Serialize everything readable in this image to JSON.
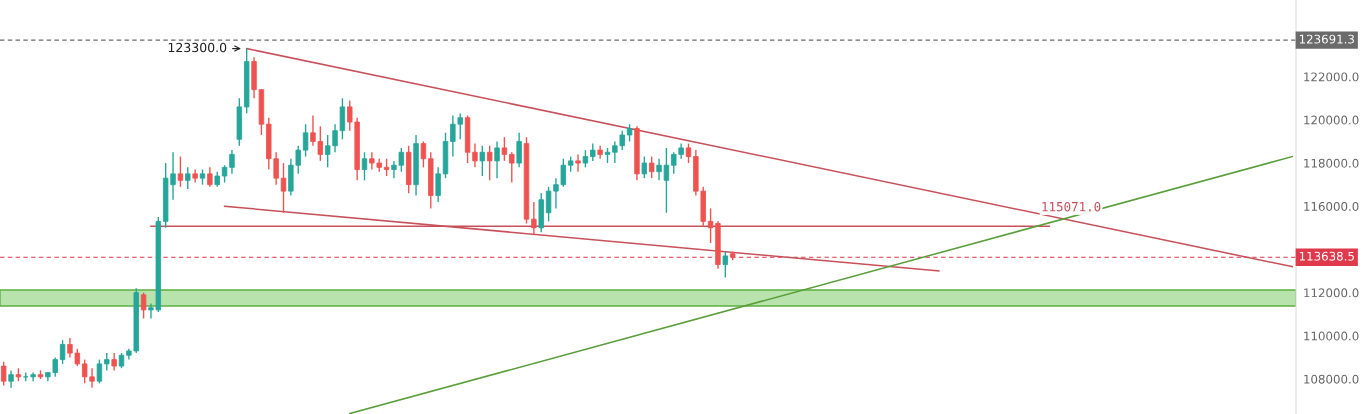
{
  "chart_data": {
    "type": "candlestick",
    "categories": [
      null,
      null,
      null,
      null,
      null,
      null,
      null,
      null,
      null,
      null,
      null,
      null,
      null,
      null,
      null,
      null,
      null,
      null,
      null,
      null,
      null,
      null,
      null,
      null,
      null,
      null,
      null,
      null,
      null,
      null,
      null,
      null,
      null,
      null,
      null,
      null,
      null,
      null,
      null,
      null,
      null,
      null,
      null,
      null,
      null,
      null,
      null,
      null,
      null,
      null,
      null,
      null,
      null,
      null,
      null,
      null,
      null,
      null,
      null,
      null,
      null,
      null,
      null,
      null,
      null,
      null,
      null,
      null,
      null,
      null,
      null,
      null,
      null,
      null,
      null,
      null,
      null,
      null,
      null,
      null,
      null,
      null,
      null,
      null,
      null,
      null,
      null,
      null,
      null,
      null,
      null,
      null,
      null,
      null,
      null,
      null,
      null,
      null,
      null,
      null,
      null,
      null,
      null,
      null,
      null,
      null,
      null,
      null,
      null,
      null,
      null,
      null,
      null,
      null,
      null,
      null,
      null,
      null,
      null,
      null,
      null,
      null,
      null,
      null,
      null,
      null,
      null,
      null,
      null,
      null,
      null,
      null,
      null,
      null,
      null,
      null,
      null,
      null,
      null,
      null,
      null,
      null,
      null,
      null,
      null,
      null,
      null,
      null,
      null,
      null,
      null,
      null,
      null,
      null,
      null,
      null,
      null,
      null,
      null,
      null,
      null,
      null,
      null,
      null,
      null,
      null,
      null,
      null,
      null,
      null,
      null,
      null,
      null,
      null,
      null,
      null
    ],
    "ohlc": [
      [
        108600,
        108800,
        107700,
        107900
      ],
      [
        107900,
        108400,
        107600,
        108200
      ],
      [
        108200,
        108500,
        107900,
        108100
      ],
      [
        108100,
        108300,
        107900,
        108100
      ],
      [
        108100,
        108300,
        107900,
        108200
      ],
      [
        108200,
        108400,
        108000,
        108100
      ],
      [
        108100,
        108300,
        107900,
        108300
      ],
      [
        108300,
        109000,
        108100,
        108900
      ],
      [
        108900,
        109800,
        108700,
        109600
      ],
      [
        109600,
        109900,
        109000,
        109200
      ],
      [
        109200,
        109400,
        108600,
        108700
      ],
      [
        108700,
        108900,
        107800,
        108100
      ],
      [
        108100,
        108500,
        107600,
        107900
      ],
      [
        107900,
        108900,
        107800,
        108700
      ],
      [
        108700,
        109200,
        108400,
        108900
      ],
      [
        108900,
        109200,
        108400,
        108600
      ],
      [
        108600,
        109200,
        108500,
        109100
      ],
      [
        109100,
        109400,
        108900,
        109300
      ],
      [
        109300,
        112200,
        109200,
        112000
      ],
      [
        111900,
        112000,
        110800,
        111200
      ],
      [
        111200,
        111500,
        110800,
        111300
      ],
      [
        111200,
        115500,
        111100,
        115300
      ],
      [
        115300,
        118000,
        115000,
        117300
      ],
      [
        117000,
        118500,
        116300,
        117500
      ],
      [
        117500,
        118300,
        116900,
        117200
      ],
      [
        117200,
        117800,
        116800,
        117500
      ],
      [
        117500,
        117700,
        117100,
        117300
      ],
      [
        117300,
        117700,
        117000,
        117500
      ],
      [
        117500,
        117800,
        116900,
        117000
      ],
      [
        117000,
        117600,
        116900,
        117400
      ],
      [
        117400,
        117900,
        117100,
        117800
      ],
      [
        117800,
        118600,
        117500,
        118400
      ],
      [
        119100,
        121000,
        118800,
        120600
      ],
      [
        120600,
        123300,
        120300,
        122700
      ],
      [
        122700,
        122900,
        121000,
        121400
      ],
      [
        121400,
        121400,
        119300,
        119800
      ],
      [
        119800,
        120100,
        117700,
        118200
      ],
      [
        118200,
        118500,
        117000,
        117300
      ],
      [
        117300,
        118000,
        115700,
        116700
      ],
      [
        116700,
        118200,
        116500,
        117900
      ],
      [
        117900,
        118800,
        117500,
        118600
      ],
      [
        118600,
        119800,
        118300,
        119400
      ],
      [
        119400,
        120200,
        118800,
        119000
      ],
      [
        119000,
        119700,
        118100,
        118400
      ],
      [
        118400,
        119300,
        117800,
        118800
      ],
      [
        118800,
        119800,
        118500,
        119500
      ],
      [
        119500,
        121000,
        119100,
        120600
      ],
      [
        120600,
        120900,
        119500,
        119900
      ],
      [
        119900,
        120100,
        117200,
        117700
      ],
      [
        117700,
        118500,
        117200,
        118200
      ],
      [
        118200,
        118500,
        117700,
        118000
      ],
      [
        118000,
        118200,
        117600,
        117800
      ],
      [
        117800,
        118200,
        117400,
        117700
      ],
      [
        117700,
        118100,
        117300,
        117900
      ],
      [
        117900,
        118700,
        117600,
        118500
      ],
      [
        118500,
        118800,
        116600,
        117000
      ],
      [
        117000,
        119300,
        116500,
        118900
      ],
      [
        118900,
        119000,
        117800,
        118200
      ],
      [
        118200,
        118500,
        115900,
        116500
      ],
      [
        116500,
        117800,
        116200,
        117500
      ],
      [
        117500,
        119400,
        117300,
        119000
      ],
      [
        119000,
        120200,
        118300,
        119800
      ],
      [
        119800,
        120300,
        119100,
        120100
      ],
      [
        120100,
        120200,
        118000,
        118500
      ],
      [
        118500,
        118900,
        117800,
        118100
      ],
      [
        118100,
        118800,
        117400,
        118500
      ],
      [
        118500,
        118800,
        117200,
        118100
      ],
      [
        118100,
        119000,
        117300,
        118700
      ],
      [
        118700,
        119200,
        118100,
        118400
      ],
      [
        118400,
        118500,
        117100,
        118000
      ],
      [
        118000,
        119400,
        117800,
        119000
      ],
      [
        118900,
        119200,
        115200,
        115400
      ],
      [
        115400,
        116200,
        114700,
        115000
      ],
      [
        115000,
        116600,
        114800,
        116300
      ],
      [
        115700,
        116900,
        115300,
        116700
      ],
      [
        116700,
        117300,
        115900,
        117000
      ],
      [
        117000,
        118200,
        116900,
        117900
      ],
      [
        117900,
        118300,
        117600,
        118100
      ],
      [
        118100,
        118400,
        117600,
        118000
      ],
      [
        118000,
        118600,
        117800,
        118300
      ],
      [
        118300,
        118900,
        118100,
        118600
      ],
      [
        118600,
        118800,
        118200,
        118400
      ],
      [
        118400,
        118700,
        118000,
        118500
      ],
      [
        118500,
        119000,
        118000,
        118800
      ],
      [
        118800,
        119500,
        118600,
        119300
      ],
      [
        119300,
        119800,
        119000,
        119600
      ],
      [
        119600,
        119700,
        117200,
        117500
      ],
      [
        117500,
        118300,
        117300,
        118000
      ],
      [
        118000,
        118300,
        117300,
        117600
      ],
      [
        117600,
        118200,
        117200,
        117900
      ],
      [
        117200,
        118700,
        115700,
        117900
      ],
      [
        117900,
        118500,
        117500,
        118400
      ],
      [
        118400,
        118900,
        118200,
        118700
      ],
      [
        118700,
        118900,
        118000,
        118300
      ],
      [
        118300,
        118600,
        116500,
        116700
      ],
      [
        116700,
        116900,
        115100,
        115300
      ],
      [
        115300,
        115900,
        114300,
        115000
      ],
      [
        115200,
        115300,
        113100,
        113300
      ],
      [
        113300,
        113900,
        112700,
        113700
      ],
      [
        113800,
        113900,
        113500,
        113638.5
      ],
      null,
      null,
      null,
      null,
      null,
      null,
      null,
      null,
      null,
      null,
      null,
      null,
      null,
      null,
      null,
      null,
      null,
      null,
      null,
      null,
      null,
      null,
      null,
      null,
      null,
      null,
      null,
      null,
      null,
      null,
      null,
      null,
      null,
      null,
      null,
      null,
      null,
      null,
      null,
      null,
      null,
      null,
      null,
      null,
      null,
      null,
      null,
      null,
      null,
      null,
      null,
      null,
      null,
      null,
      null,
      null,
      null,
      null,
      null,
      null,
      null,
      null,
      null,
      null,
      null,
      null,
      null,
      null,
      null,
      null,
      null,
      null,
      null,
      null,
      null,
      null
    ],
    "colors": [
      "#ef5350",
      "#26a69a",
      "#ef5350",
      "#26a69a",
      "#26a69a",
      "#ef5350",
      "#26a69a",
      "#26a69a",
      "#26a69a",
      "#ef5350",
      "#ef5350",
      "#ef5350",
      "#ef5350",
      "#26a69a",
      "#26a69a",
      "#ef5350",
      "#26a69a",
      "#26a69a",
      "#26a69a",
      "#ef5350",
      "#26a69a",
      "#26a69a",
      "#26a69a",
      "#26a69a",
      "#ef5350",
      "#26a69a",
      "#ef5350",
      "#26a69a",
      "#ef5350",
      "#26a69a",
      "#26a69a",
      "#26a69a",
      "#26a69a",
      "#26a69a",
      "#ef5350",
      "#ef5350",
      "#ef5350",
      "#ef5350",
      "#ef5350",
      "#26a69a",
      "#26a69a",
      "#26a69a",
      "#ef5350",
      "#ef5350",
      "#26a69a",
      "#26a69a",
      "#26a69a",
      "#ef5350",
      "#ef5350",
      "#26a69a",
      "#ef5350",
      "#ef5350",
      "#ef5350",
      "#26a69a",
      "#26a69a",
      "#ef5350",
      "#26a69a",
      "#ef5350",
      "#ef5350",
      "#26a69a",
      "#26a69a",
      "#26a69a",
      "#26a69a",
      "#ef5350",
      "#ef5350",
      "#26a69a",
      "#ef5350",
      "#26a69a",
      "#ef5350",
      "#ef5350",
      "#26a69a",
      "#ef5350",
      "#ef5350",
      "#26a69a",
      "#26a69a",
      "#26a69a",
      "#26a69a",
      "#26a69a",
      "#ef5350",
      "#26a69a",
      "#26a69a",
      "#ef5350",
      "#26a69a",
      "#26a69a",
      "#26a69a",
      "#26a69a",
      "#ef5350",
      "#26a69a",
      "#ef5350",
      "#26a69a",
      "#26a69a",
      "#26a69a",
      "#26a69a",
      "#ef5350",
      "#ef5350",
      "#ef5350",
      "#ef5350",
      "#ef5350",
      "#26a69a",
      "#ef5350",
      null,
      null,
      null,
      null,
      null,
      null,
      null,
      null,
      null,
      null,
      null,
      null,
      null,
      null,
      null,
      null,
      null,
      null,
      null,
      null,
      null,
      null,
      null,
      null,
      null,
      null,
      null,
      null,
      null,
      null,
      null,
      null,
      null,
      null,
      null,
      null,
      null,
      null,
      null,
      null,
      null,
      null,
      null,
      null,
      null,
      null,
      null,
      null,
      null,
      null,
      null,
      null,
      null,
      null,
      null,
      null,
      null,
      null,
      null,
      null,
      null,
      null,
      null,
      null,
      null,
      null,
      null,
      null,
      null,
      null,
      null,
      null,
      null,
      null,
      null,
      null
    ],
    "series": [
      {
        "type": "line",
        "color": "#c8505a",
        "values": [
          null,
          null,
          null,
          null,
          null,
          null,
          null,
          null,
          null,
          null,
          null,
          null,
          null,
          null,
          null,
          null,
          null,
          null,
          null,
          null,
          null,
          null,
          null,
          null,
          null,
          null,
          null,
          null,
          null,
          null,
          null,
          null,
          null,
          123300,
          null,
          null,
          null,
          null,
          null,
          null,
          null,
          null,
          null,
          null,
          null,
          null,
          null,
          null,
          null,
          null,
          null,
          null,
          null,
          null,
          null,
          null,
          null,
          null,
          null,
          null,
          null,
          null,
          null,
          null,
          null,
          null,
          null,
          null,
          null,
          null,
          null,
          null,
          null,
          null,
          null,
          null,
          null,
          null,
          null,
          null,
          null,
          null,
          null,
          null,
          null,
          null,
          null,
          null,
          null,
          null,
          null,
          null,
          null,
          null,
          null,
          null,
          null,
          null,
          null,
          null,
          null,
          null,
          null,
          null,
          null,
          null,
          null,
          null,
          null,
          null,
          null,
          null,
          null,
          null,
          null,
          null,
          null,
          null,
          null,
          null,
          null,
          null,
          null,
          null,
          null,
          null,
          null,
          null,
          null,
          null,
          null,
          null,
          null,
          null,
          null,
          null,
          null,
          null,
          null,
          null,
          null,
          null,
          null,
          null,
          null,
          null,
          null,
          null,
          null,
          null,
          null,
          null,
          null,
          null,
          null,
          null,
          null,
          null,
          null,
          null,
          null,
          null,
          null,
          null,
          null,
          null,
          null,
          null,
          null,
          null,
          null,
          null,
          null,
          null,
          null,
          113200
        ]
      },
      {
        "type": "line",
        "color": "#c8505a",
        "values": [
          null,
          null,
          null,
          null,
          null,
          null,
          null,
          null,
          null,
          null,
          null,
          null,
          null,
          null,
          null,
          null,
          null,
          null,
          null,
          null,
          null,
          null,
          null,
          null,
          null,
          null,
          null,
          null,
          null,
          null,
          116000,
          null,
          null,
          null,
          null,
          null,
          null,
          null,
          null,
          null,
          null,
          null,
          null,
          null,
          null,
          null,
          null,
          null,
          null,
          null,
          null,
          null,
          null,
          null,
          null,
          null,
          null,
          null,
          null,
          null,
          null,
          null,
          null,
          null,
          null,
          null,
          null,
          null,
          null,
          null,
          null,
          null,
          null,
          null,
          null,
          null,
          null,
          null,
          null,
          null,
          null,
          null,
          null,
          null,
          null,
          null,
          null,
          null,
          null,
          null,
          null,
          null,
          null,
          null,
          null,
          null,
          null,
          null,
          null,
          null,
          null,
          null,
          null,
          null,
          null,
          null,
          null,
          null,
          null,
          null,
          null,
          null,
          null,
          null,
          null,
          null,
          null,
          null,
          null,
          null,
          null,
          null,
          null,
          null,
          null,
          null,
          null,
          113000,
          null,
          null,
          null,
          null,
          null,
          null,
          null,
          null,
          null,
          null,
          null,
          null,
          null,
          null,
          null,
          null,
          null,
          null,
          null,
          null,
          null,
          null,
          null,
          null,
          null,
          null,
          null,
          null,
          null,
          null,
          null,
          null,
          null,
          null,
          null,
          null,
          null,
          null,
          null,
          null,
          null,
          null,
          null,
          null,
          null,
          null,
          null,
          null
        ]
      },
      {
        "type": "line",
        "name": "115071.0",
        "color": "#c8505a",
        "values": [
          null,
          null,
          null,
          null,
          null,
          null,
          null,
          null,
          null,
          null,
          null,
          null,
          null,
          null,
          null,
          null,
          null,
          null,
          null,
          null,
          115071,
          null,
          null,
          null,
          null,
          null,
          null,
          null,
          null,
          null,
          null,
          null,
          null,
          null,
          null,
          null,
          null,
          null,
          null,
          null,
          null,
          null,
          null,
          null,
          null,
          null,
          null,
          null,
          null,
          null,
          null,
          null,
          null,
          null,
          null,
          null,
          null,
          null,
          null,
          null,
          null,
          null,
          null,
          null,
          null,
          null,
          null,
          null,
          null,
          null,
          null,
          null,
          null,
          null,
          null,
          null,
          null,
          null,
          null,
          null,
          null,
          null,
          null,
          null,
          null,
          null,
          null,
          null,
          null,
          null,
          null,
          null,
          null,
          null,
          null,
          null,
          null,
          null,
          null,
          null,
          null,
          null,
          null,
          null,
          null,
          null,
          null,
          null,
          null,
          null,
          null,
          null,
          null,
          null,
          null,
          null,
          null,
          null,
          null,
          null,
          null,
          null,
          null,
          null,
          null,
          null,
          null,
          null,
          null,
          null,
          null,
          null,
          null,
          null,
          null,
          null,
          null,
          null,
          null,
          null,
          null,
          null,
          115071,
          null,
          null,
          null,
          null,
          null,
          null,
          null,
          null,
          null,
          null,
          null,
          null,
          null,
          null,
          null,
          null,
          null,
          null,
          null,
          null,
          null,
          null,
          null,
          null,
          null,
          null,
          null,
          null,
          null,
          null,
          null,
          null,
          null
        ]
      },
      {
        "type": "line",
        "color": "#5a9e3a",
        "values": [
          null,
          null,
          null,
          null,
          null,
          null,
          null,
          null,
          null,
          null,
          null,
          null,
          null,
          null,
          null,
          null,
          null,
          null,
          null,
          null,
          null,
          null,
          null,
          null,
          null,
          null,
          null,
          null,
          null,
          null,
          null,
          null,
          null,
          null,
          null,
          null,
          null,
          null,
          null,
          null,
          null,
          null,
          null,
          null,
          null,
          null,
          null,
          106400,
          null,
          null,
          null,
          null,
          null,
          null,
          null,
          null,
          null,
          null,
          null,
          null,
          null,
          null,
          null,
          null,
          null,
          null,
          null,
          null,
          null,
          null,
          null,
          null,
          null,
          null,
          null,
          null,
          null,
          null,
          null,
          null,
          null,
          null,
          null,
          null,
          null,
          null,
          null,
          null,
          null,
          null,
          null,
          null,
          null,
          null,
          null,
          null,
          null,
          null,
          null,
          null,
          null,
          null,
          null,
          null,
          null,
          null,
          null,
          null,
          null,
          null,
          null,
          null,
          null,
          null,
          null,
          null,
          null,
          null,
          null,
          null,
          null,
          null,
          null,
          null,
          null,
          null,
          null,
          null,
          null,
          null,
          null,
          null,
          null,
          null,
          null,
          null,
          null,
          null,
          null,
          null,
          null,
          null,
          null,
          null,
          null,
          null,
          null,
          null,
          null,
          null,
          null,
          null,
          null,
          null,
          null,
          null,
          null,
          null,
          null,
          null,
          null,
          null,
          null,
          null,
          null,
          null,
          null,
          null,
          null,
          null,
          null,
          null,
          null,
          null,
          null,
          118300
        ]
      }
    ],
    "ylim": [
      106380,
      125550
    ],
    "yticks": [
      {
        "value": 108000,
        "label": "108000.0"
      },
      {
        "value": 110000,
        "label": "110000.0"
      },
      {
        "value": 112000,
        "label": "112000.0"
      },
      {
        "value": 116000,
        "label": "116000.0"
      },
      {
        "value": 118000,
        "label": "118000.0"
      },
      {
        "value": 120000,
        "label": "120000.0"
      },
      {
        "value": 122000,
        "label": "122000.0"
      }
    ],
    "tick_labels": "y",
    "grid": false,
    "legend": false,
    "ref_lines": [
      {
        "axis": "y",
        "value": 123691.3,
        "label": "123691.3",
        "color": "#6b6b6b",
        "line_style": "dashed"
      },
      {
        "axis": "y",
        "value": 113638.5,
        "label": "113638.5",
        "color": "#e0394b",
        "line_style": "dashed"
      }
    ],
    "bands": [
      {
        "axis": "y",
        "from": 111380,
        "to": 112120,
        "color": "#b9e3ad"
      }
    ],
    "annotations": [
      "123300.0"
    ]
  }
}
